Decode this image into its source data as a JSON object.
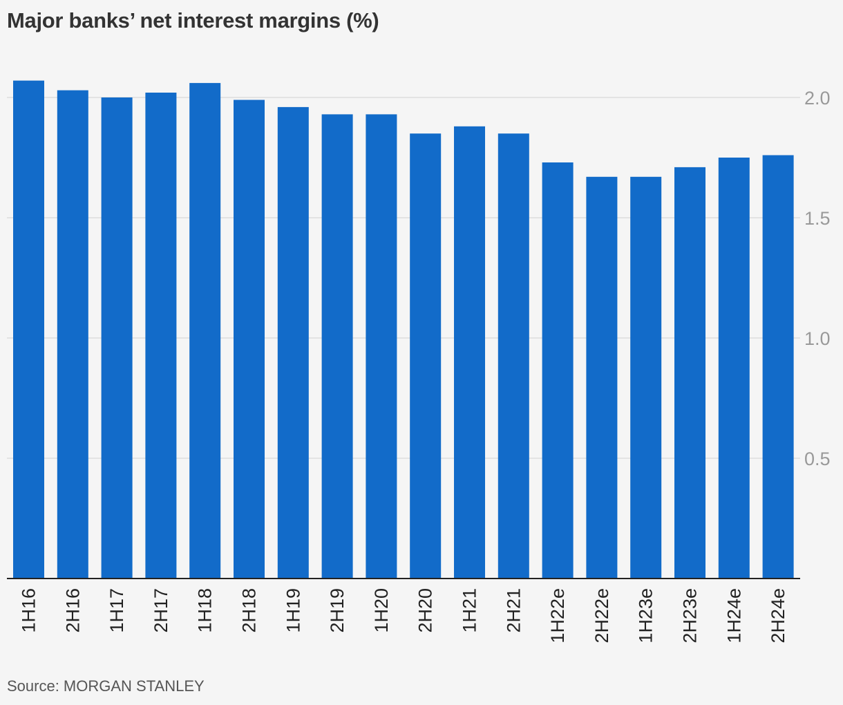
{
  "title": "Major banks’ net interest margins (%)",
  "source": "Source: MORGAN STANLEY",
  "colors": {
    "bar": "#126bc9",
    "grid": "#dddddd",
    "axis": "#222222",
    "tick_text": "#999999"
  },
  "chart_data": {
    "type": "bar",
    "title": "Major banks’ net interest margins (%)",
    "xlabel": "",
    "ylabel": "",
    "categories": [
      "1H16",
      "2H16",
      "1H17",
      "2H17",
      "1H18",
      "2H18",
      "1H19",
      "2H19",
      "1H20",
      "2H20",
      "1H21",
      "2H21",
      "1H22e",
      "2H22e",
      "1H23e",
      "2H23e",
      "1H24e",
      "2H24e"
    ],
    "values": [
      2.07,
      2.03,
      2.0,
      2.02,
      2.06,
      1.99,
      1.96,
      1.93,
      1.93,
      1.85,
      1.88,
      1.85,
      1.73,
      1.67,
      1.67,
      1.71,
      1.75,
      1.76
    ],
    "ylim": [
      0,
      2.0
    ],
    "yticks": [
      "0.5",
      "1.0",
      "1.5",
      "2.0"
    ],
    "y_axis_position": "right",
    "grid": true,
    "legend": "none"
  }
}
